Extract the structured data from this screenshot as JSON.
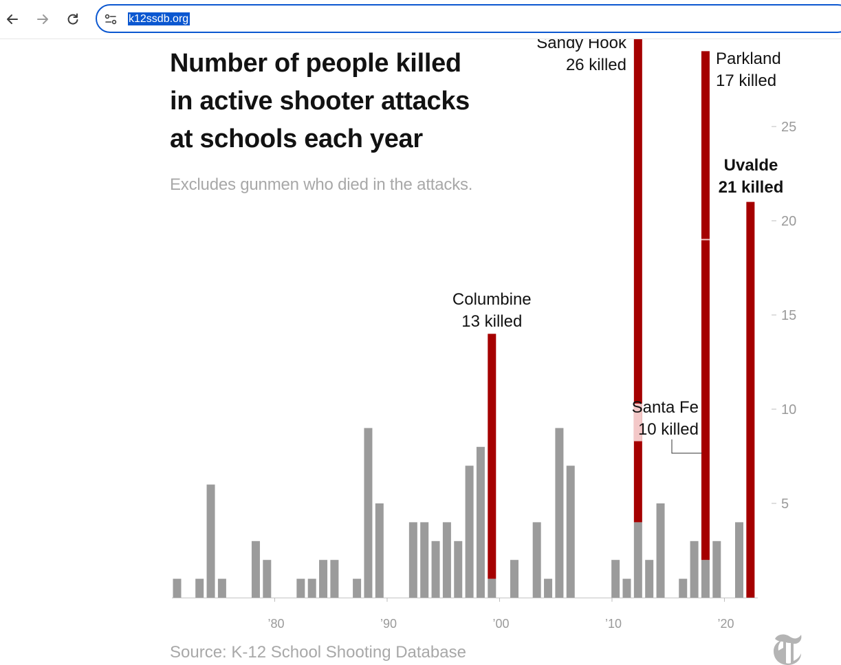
{
  "browser": {
    "back_icon": "arrow-left-icon",
    "forward_icon": "arrow-right-icon",
    "reload_icon": "reload-icon",
    "site_settings_icon": "tune-icon",
    "url": "k12ssdb.org"
  },
  "chart": {
    "title_lines": [
      "Number of people killed",
      "in active shooter attacks",
      "at schools each year"
    ],
    "subtitle": "Excludes gunmen who died in the attacks.",
    "source": "Source: K-12 School Shooting Database",
    "logo": "nyt-logo"
  },
  "colors": {
    "bar_gray": "#9b9b9b",
    "highlight_red": "#a50000",
    "highlight_pink": "#f3c8c8",
    "accent_blue": "#0b57d0"
  },
  "chart_data": {
    "type": "bar",
    "title": "Number of people killed in active shooter attacks at schools each year",
    "subtitle": "Excludes gunmen who died in the attacks.",
    "x_tick_labels": [
      "’80",
      "’90",
      "’00",
      "’10",
      "’20"
    ],
    "x_ticks": [
      1980,
      1990,
      2000,
      2010,
      2020
    ],
    "y_tick_labels": [
      "5",
      "10",
      "15",
      "20",
      "25"
    ],
    "y_ticks": [
      5,
      10,
      15,
      20,
      25
    ],
    "ylim": [
      0,
      29
    ],
    "xlim": [
      1970.5,
      2023
    ],
    "grid": false,
    "stacked": true,
    "series": [
      {
        "color": "#9b9b9b",
        "points": [
          [
            1971,
            1
          ],
          [
            1973,
            1
          ],
          [
            1974,
            6
          ],
          [
            1975,
            1
          ],
          [
            1978,
            3
          ],
          [
            1979,
            2
          ],
          [
            1982,
            1
          ],
          [
            1983,
            1
          ],
          [
            1984,
            2
          ],
          [
            1985,
            2
          ],
          [
            1987,
            1
          ],
          [
            1988,
            9
          ],
          [
            1989,
            5
          ],
          [
            1992,
            4
          ],
          [
            1993,
            4
          ],
          [
            1994,
            3
          ],
          [
            1995,
            4
          ],
          [
            1996,
            3
          ],
          [
            1997,
            7
          ],
          [
            1998,
            8
          ],
          [
            1999,
            1
          ],
          [
            2001,
            2
          ],
          [
            2003,
            4
          ],
          [
            2004,
            1
          ],
          [
            2005,
            9
          ],
          [
            2006,
            7
          ],
          [
            2010,
            2
          ],
          [
            2011,
            1
          ],
          [
            2012,
            4
          ],
          [
            2013,
            2
          ],
          [
            2014,
            5
          ],
          [
            2016,
            1
          ],
          [
            2017,
            3
          ],
          [
            2018,
            2
          ],
          [
            2019,
            3
          ],
          [
            2021,
            4
          ]
        ]
      },
      {
        "color": "#a50000",
        "points": [
          [
            1999,
            13
          ],
          [
            2012,
            26
          ],
          [
            2018,
            27
          ],
          [
            2022,
            21
          ]
        ]
      }
    ],
    "annotations": [
      {
        "lines": [
          "Columbine",
          "13 killed"
        ],
        "x": 1999,
        "y": 14
      },
      {
        "lines": [
          "Sandy Hook",
          "26 killed"
        ],
        "x": 2012,
        "y": 30
      },
      {
        "lines": [
          "Parkland",
          "17 killed"
        ],
        "x": 2018,
        "y": 29
      },
      {
        "lines": [
          "Santa Fe",
          "10 killed"
        ],
        "x": 2018,
        "y": 10.5
      },
      {
        "lines": [
          "Uvalde",
          "21 killed"
        ],
        "x": 2022,
        "y": 23,
        "bold": true
      }
    ]
  }
}
